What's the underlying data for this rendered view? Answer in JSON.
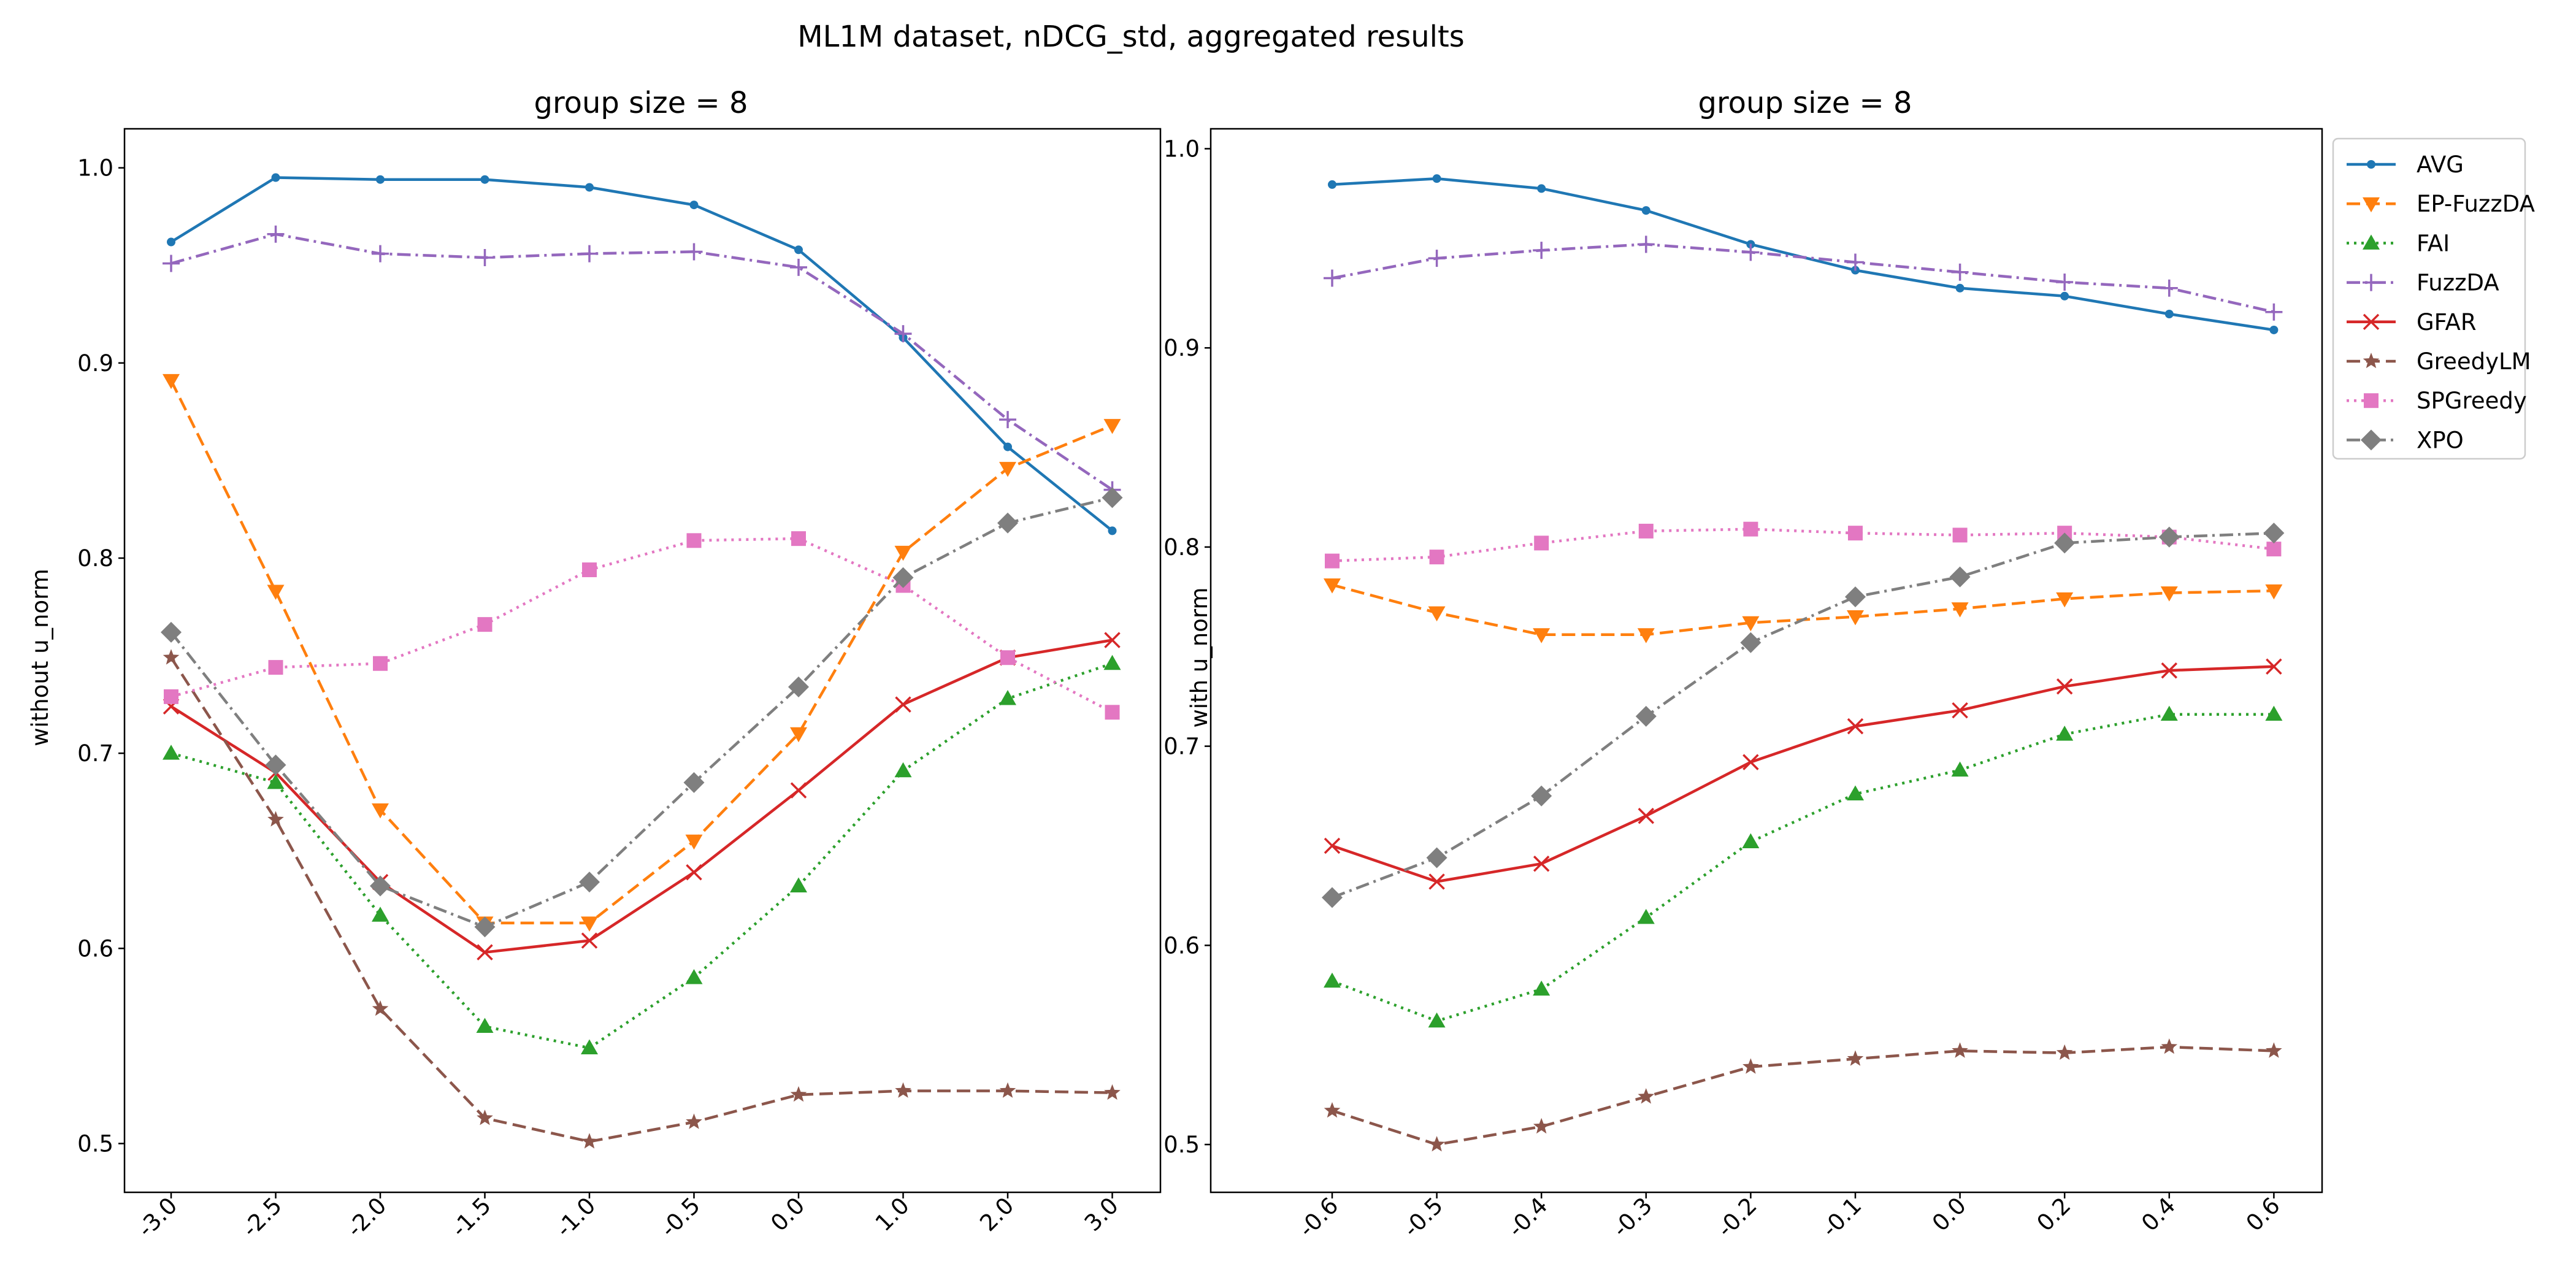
{
  "figure": {
    "suptitle": "ML1M dataset, nDCG_std, aggregated results"
  },
  "legend": {
    "location": "upper-right-outside",
    "items": [
      {
        "name": "AVG",
        "color": "#1f77b4",
        "linestyle": "solid",
        "marker": "circle"
      },
      {
        "name": "EP-FuzzDA",
        "color": "#ff7f0e",
        "linestyle": "dashed",
        "marker": "triangle-down"
      },
      {
        "name": "FAI",
        "color": "#2ca02c",
        "linestyle": "dotted",
        "marker": "triangle-up"
      },
      {
        "name": "FuzzDA",
        "color": "#9467bd",
        "linestyle": "dashdot",
        "marker": "plus"
      },
      {
        "name": "GFAR",
        "color": "#d62728",
        "linestyle": "solid",
        "marker": "x"
      },
      {
        "name": "GreedyLM",
        "color": "#8c564b",
        "linestyle": "dashed",
        "marker": "star"
      },
      {
        "name": "SPGreedy",
        "color": "#e377c2",
        "linestyle": "dotted",
        "marker": "square"
      },
      {
        "name": "XPO",
        "color": "#7f7f7f",
        "linestyle": "dashdot",
        "marker": "diamond"
      }
    ]
  },
  "chart_data": [
    {
      "type": "line",
      "title": "group size = 8",
      "xlabel": "",
      "ylabel": "without u_norm",
      "categories": [
        "-3.0",
        "-2.5",
        "-2.0",
        "-1.5",
        "-1.0",
        "-0.5",
        "0.0",
        "1.0",
        "2.0",
        "3.0"
      ],
      "ylim": [
        0.475,
        1.02
      ],
      "yticks": [
        0.5,
        0.6,
        0.7,
        0.8,
        0.9,
        1.0
      ],
      "ytick_labels": [
        "0.5",
        "0.6",
        "0.7",
        "0.8",
        "0.9",
        "1.0"
      ],
      "grid": false,
      "series": [
        {
          "name": "AVG",
          "values": [
            0.962,
            0.995,
            0.994,
            0.994,
            0.99,
            0.981,
            0.958,
            0.913,
            0.857,
            0.814
          ]
        },
        {
          "name": "EP-FuzzDA",
          "values": [
            0.891,
            0.783,
            0.671,
            0.613,
            0.613,
            0.655,
            0.71,
            0.803,
            0.846,
            0.868
          ]
        },
        {
          "name": "FAI",
          "values": [
            0.7,
            0.685,
            0.617,
            0.56,
            0.549,
            0.585,
            0.632,
            0.691,
            0.728,
            0.746
          ]
        },
        {
          "name": "FuzzDA",
          "values": [
            0.951,
            0.966,
            0.956,
            0.954,
            0.956,
            0.957,
            0.949,
            0.915,
            0.871,
            0.835
          ]
        },
        {
          "name": "GFAR",
          "values": [
            0.724,
            0.69,
            0.634,
            0.598,
            0.604,
            0.639,
            0.681,
            0.725,
            0.749,
            0.758
          ]
        },
        {
          "name": "GreedyLM",
          "values": [
            0.749,
            0.666,
            0.569,
            0.513,
            0.501,
            0.511,
            0.525,
            0.527,
            0.527,
            0.526
          ]
        },
        {
          "name": "SPGreedy",
          "values": [
            0.729,
            0.744,
            0.746,
            0.766,
            0.794,
            0.809,
            0.81,
            0.786,
            0.749,
            0.721
          ]
        },
        {
          "name": "XPO",
          "values": [
            0.762,
            0.694,
            0.632,
            0.611,
            0.634,
            0.685,
            0.734,
            0.79,
            0.818,
            0.831
          ]
        }
      ]
    },
    {
      "type": "line",
      "title": "group size = 8",
      "xlabel": "",
      "ylabel": "with u_norm",
      "categories": [
        "-0.6",
        "-0.5",
        "-0.4",
        "-0.3",
        "-0.2",
        "-0.1",
        "0.0",
        "0.2",
        "0.4",
        "0.6"
      ],
      "ylim": [
        0.476,
        1.01
      ],
      "yticks": [
        0.5,
        0.6,
        0.7,
        0.8,
        0.9,
        1.0
      ],
      "ytick_labels": [
        "0.5",
        "0.6",
        "0.7",
        "0.8",
        "0.9",
        "1.0"
      ],
      "grid": false,
      "series": [
        {
          "name": "AVG",
          "values": [
            0.982,
            0.985,
            0.98,
            0.969,
            0.952,
            0.939,
            0.93,
            0.926,
            0.917,
            0.909
          ]
        },
        {
          "name": "EP-FuzzDA",
          "values": [
            0.781,
            0.767,
            0.756,
            0.756,
            0.762,
            0.765,
            0.769,
            0.774,
            0.777,
            0.778
          ]
        },
        {
          "name": "FAI",
          "values": [
            0.582,
            0.562,
            0.578,
            0.614,
            0.652,
            0.676,
            0.688,
            0.706,
            0.716,
            0.716
          ]
        },
        {
          "name": "FuzzDA",
          "values": [
            0.935,
            0.945,
            0.949,
            0.952,
            0.948,
            0.943,
            0.938,
            0.933,
            0.93,
            0.918
          ]
        },
        {
          "name": "GFAR",
          "values": [
            0.65,
            0.632,
            0.641,
            0.665,
            0.692,
            0.71,
            0.718,
            0.73,
            0.738,
            0.74
          ]
        },
        {
          "name": "GreedyLM",
          "values": [
            0.517,
            0.5,
            0.509,
            0.524,
            0.539,
            0.543,
            0.547,
            0.546,
            0.549,
            0.547
          ]
        },
        {
          "name": "SPGreedy",
          "values": [
            0.793,
            0.795,
            0.802,
            0.808,
            0.809,
            0.807,
            0.806,
            0.807,
            0.805,
            0.799
          ]
        },
        {
          "name": "XPO",
          "values": [
            0.624,
            0.644,
            0.675,
            0.715,
            0.752,
            0.775,
            0.785,
            0.802,
            0.805,
            0.807
          ]
        }
      ]
    }
  ]
}
